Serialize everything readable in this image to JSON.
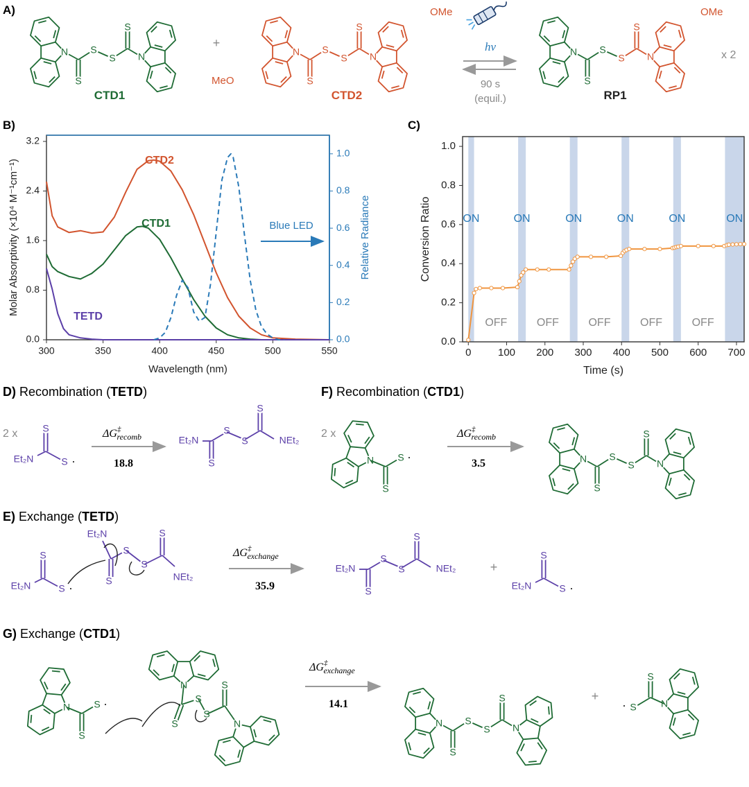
{
  "colors": {
    "green": "#1e6b34",
    "red": "#d2542e",
    "purple": "#5b3fa8",
    "blue": "#2a7ab8",
    "orange": "#f0953f",
    "gray": "#808080",
    "band": "#c9d6ea"
  },
  "panelA": {
    "label": "A)",
    "ctd1_name": "CTD1",
    "ctd2_name": "CTD2",
    "rp1_name": "RP1",
    "plus": "+",
    "hv": "hν",
    "reverse_time": "90 s",
    "reverse_note": "(equil.)",
    "multiplier": "x 2",
    "ome": "OMe",
    "meo": "MeO",
    "icon": "flashlight-icon"
  },
  "panelB": {
    "label": "B)",
    "xlabel": "Wavelength (nm)",
    "ylabel_left": "Molar Absorptivity (×10⁴ M⁻¹cm⁻¹)",
    "ylabel_right": "Relative Radiance",
    "annotation": "Blue LED",
    "series_labels": [
      "CTD2",
      "CTD1",
      "TETD"
    ],
    "xticks": [
      "300",
      "350",
      "400",
      "450",
      "500",
      "550"
    ],
    "yticks_left": [
      "0.0",
      "0.8",
      "1.6",
      "2.4",
      "3.2"
    ],
    "yticks_right": [
      "0.0",
      "0.2",
      "0.4",
      "0.6",
      "0.8",
      "1.0"
    ]
  },
  "panelC": {
    "label": "C)",
    "xlabel": "Time (s)",
    "ylabel": "Conversion Ratio",
    "on_label": "ON",
    "off_label": "OFF",
    "xticks": [
      "0",
      "100",
      "200",
      "300",
      "400",
      "500",
      "600",
      "700"
    ],
    "yticks": [
      "0.0",
      "0.2",
      "0.4",
      "0.6",
      "0.8",
      "1.0"
    ]
  },
  "panelD": {
    "label": "D)",
    "title": "Recombination (",
    "title_bold": "TETD",
    "title_end": ")",
    "coef": "2 x",
    "value": "18.8"
  },
  "panelE": {
    "label": "E)",
    "title": "Exchange (",
    "title_bold": "TETD",
    "title_end": ")",
    "value": "35.9",
    "plus": "+"
  },
  "panelF": {
    "label": "F)",
    "title": "Recombination (",
    "title_bold": "CTD1",
    "title_end": ")",
    "coef": "2 x",
    "value": "3.5"
  },
  "panelG": {
    "label": "G)",
    "title": "Exchange (",
    "title_bold": "CTD1",
    "title_end": ")",
    "value": "14.1",
    "plus": "+"
  },
  "chem": {
    "S": "S",
    "N": "N",
    "Et2N": "Et₂N",
    "NEt2": "NEt₂",
    "dG": "ΔG",
    "dagger": "‡",
    "recomb": "recomb",
    "exchange": "exchange",
    "radical": "·"
  },
  "chart_data": [
    {
      "type": "line",
      "panel": "B",
      "xlabel": "Wavelength (nm)",
      "ylabel": "Molar Absorptivity (×10⁴ M⁻¹cm⁻¹)",
      "y2label": "Relative Radiance",
      "xlim": [
        300,
        550
      ],
      "ylim": [
        0,
        3.3
      ],
      "y2lim": [
        0,
        1.1
      ],
      "series": [
        {
          "name": "CTD2",
          "axis": "left",
          "x": [
            300,
            305,
            310,
            320,
            330,
            340,
            350,
            360,
            370,
            380,
            390,
            395,
            400,
            410,
            420,
            430,
            440,
            450,
            460,
            470,
            480,
            490,
            500,
            520,
            550
          ],
          "y": [
            2.55,
            2.0,
            1.82,
            1.73,
            1.76,
            1.72,
            1.74,
            1.98,
            2.38,
            2.75,
            2.89,
            2.9,
            2.88,
            2.72,
            2.42,
            2.02,
            1.55,
            1.08,
            0.68,
            0.38,
            0.19,
            0.08,
            0.03,
            0.01,
            0.0
          ]
        },
        {
          "name": "CTD1",
          "axis": "left",
          "x": [
            300,
            305,
            310,
            320,
            330,
            340,
            350,
            360,
            370,
            380,
            385,
            390,
            400,
            410,
            420,
            430,
            440,
            450,
            460,
            470,
            480,
            490,
            500,
            520,
            550
          ],
          "y": [
            1.38,
            1.18,
            1.1,
            1.02,
            0.98,
            1.07,
            1.22,
            1.45,
            1.68,
            1.82,
            1.83,
            1.8,
            1.62,
            1.32,
            0.98,
            0.65,
            0.38,
            0.19,
            0.08,
            0.03,
            0.01,
            0.0,
            0.0,
            0.0,
            0.0
          ]
        },
        {
          "name": "TETD",
          "axis": "left",
          "x": [
            300,
            305,
            310,
            315,
            320,
            330,
            340,
            350,
            360,
            380,
            400,
            550
          ],
          "y": [
            1.15,
            0.82,
            0.42,
            0.18,
            0.08,
            0.03,
            0.01,
            0.0,
            0.0,
            0.0,
            0.0,
            0.0
          ]
        },
        {
          "name": "",
          "axis": "right",
          "style": "dashed",
          "x": [
            395,
            400,
            405,
            410,
            415,
            420,
            425,
            430,
            435,
            440,
            445,
            450,
            455,
            460,
            463,
            465,
            470,
            475,
            480,
            485,
            490,
            495,
            500,
            505,
            510
          ],
          "y": [
            0.0,
            0.01,
            0.04,
            0.12,
            0.24,
            0.32,
            0.28,
            0.15,
            0.1,
            0.12,
            0.3,
            0.58,
            0.86,
            0.98,
            1.0,
            0.98,
            0.82,
            0.56,
            0.32,
            0.16,
            0.07,
            0.03,
            0.01,
            0.0,
            0.0
          ]
        }
      ]
    },
    {
      "type": "line",
      "panel": "C",
      "xlabel": "Time (s)",
      "ylabel": "Conversion Ratio",
      "xlim": [
        -15,
        720
      ],
      "ylim": [
        0,
        1.05
      ],
      "on_intervals": [
        [
          0,
          15
        ],
        [
          130,
          150
        ],
        [
          265,
          285
        ],
        [
          400,
          420
        ],
        [
          535,
          555
        ],
        [
          670,
          720
        ]
      ],
      "series": [
        {
          "name": "",
          "x": [
            0,
            15,
            20,
            30,
            60,
            90,
            128,
            133,
            138,
            143,
            150,
            180,
            210,
            263,
            268,
            273,
            278,
            285,
            320,
            360,
            398,
            403,
            408,
            413,
            420,
            460,
            500,
            533,
            538,
            543,
            548,
            555,
            600,
            640,
            668,
            675,
            680,
            690,
            700,
            710,
            720
          ],
          "y": [
            0.01,
            0.25,
            0.27,
            0.275,
            0.275,
            0.275,
            0.28,
            0.31,
            0.34,
            0.355,
            0.37,
            0.37,
            0.37,
            0.37,
            0.39,
            0.41,
            0.425,
            0.435,
            0.435,
            0.435,
            0.44,
            0.455,
            0.465,
            0.47,
            0.475,
            0.475,
            0.475,
            0.48,
            0.482,
            0.485,
            0.487,
            0.49,
            0.49,
            0.49,
            0.49,
            0.495,
            0.497,
            0.498,
            0.499,
            0.5,
            0.5
          ]
        }
      ]
    }
  ]
}
